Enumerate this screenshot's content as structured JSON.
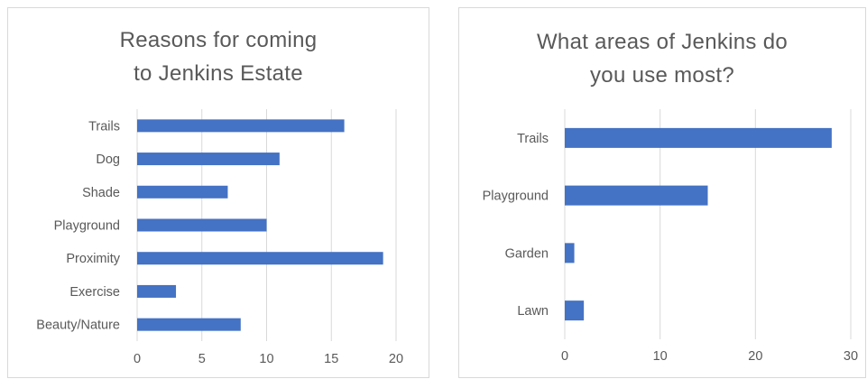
{
  "chart_data": [
    {
      "type": "bar",
      "orientation": "horizontal",
      "title_lines": [
        "Reasons for coming",
        "to Jenkins Estate"
      ],
      "categories": [
        "Trails",
        "Dog",
        "Shade",
        "Playground",
        "Proximity",
        "Exercise",
        "Beauty/Nature"
      ],
      "values": [
        16,
        11,
        7,
        10,
        19,
        3,
        8
      ],
      "xlim": [
        0,
        20
      ],
      "xticks": [
        0,
        5,
        10,
        15,
        20
      ],
      "xlabel": "",
      "ylabel": "",
      "grid": "vertical",
      "legend": "none",
      "bar_color": "#4472C4"
    },
    {
      "type": "bar",
      "orientation": "horizontal",
      "title_lines": [
        "What areas of Jenkins do",
        "you use most?"
      ],
      "categories": [
        "Trails",
        "Playground",
        "Garden",
        "Lawn"
      ],
      "values": [
        28,
        15,
        1,
        2
      ],
      "xlim": [
        0,
        30
      ],
      "xticks": [
        0,
        10,
        20,
        30
      ],
      "xlabel": "",
      "ylabel": "",
      "grid": "vertical",
      "legend": "none",
      "bar_color": "#4472C4"
    }
  ]
}
